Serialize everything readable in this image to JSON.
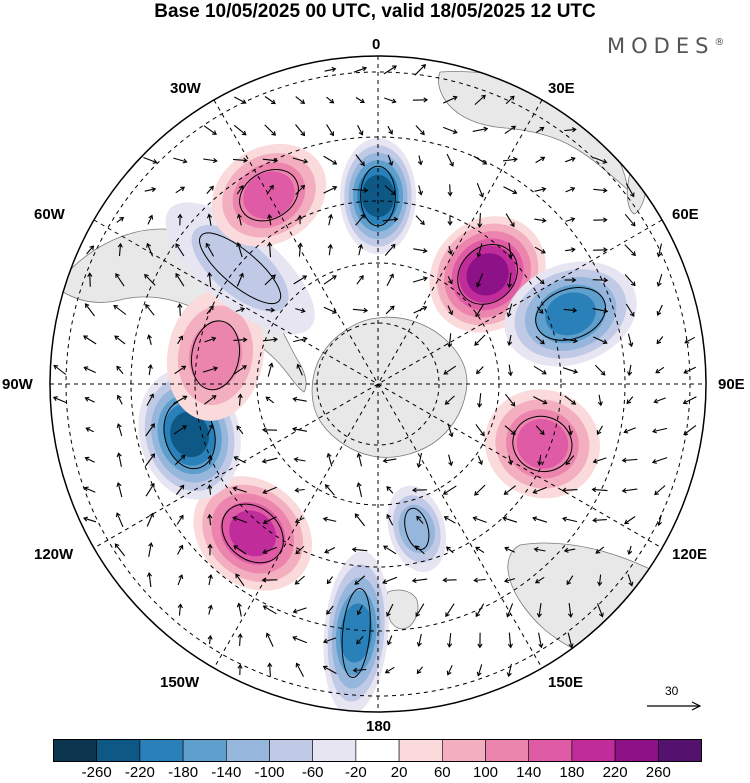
{
  "title": "Base 10/05/2025 00 UTC, valid 18/05/2025 12 UTC",
  "brand": {
    "name": "MODES",
    "mark": "®"
  },
  "map": {
    "projection": "south-polar-stereographic",
    "longitude_labels": [
      "0",
      "30E",
      "60E",
      "90E",
      "120E",
      "150E",
      "180",
      "150W",
      "120W",
      "90W",
      "60W",
      "30W"
    ],
    "reference_vector": {
      "value": "30"
    },
    "field_features": [
      {
        "kind": "negative",
        "level": -240,
        "sector": "0"
      },
      {
        "kind": "positive",
        "level": 240,
        "sector": "45E"
      },
      {
        "kind": "negative",
        "level": -200,
        "sector": "70E"
      },
      {
        "kind": "positive",
        "level": 140,
        "sector": "110E"
      },
      {
        "kind": "negative",
        "level": -100,
        "sector": "165E"
      },
      {
        "kind": "negative",
        "level": -180,
        "sector": "175W"
      },
      {
        "kind": "positive",
        "level": 180,
        "sector": "140W"
      },
      {
        "kind": "negative",
        "level": -220,
        "sector": "105W"
      },
      {
        "kind": "positive",
        "level": 120,
        "sector": "80W"
      },
      {
        "kind": "negative",
        "level": -80,
        "sector": "50W"
      },
      {
        "kind": "positive",
        "level": 140,
        "sector": "30W"
      }
    ]
  },
  "colorbar": {
    "ticks": [
      "-260",
      "-220",
      "-180",
      "-140",
      "-100",
      "-60",
      "-20",
      "20",
      "60",
      "100",
      "140",
      "180",
      "220",
      "260"
    ],
    "colors": [
      "#0c3550",
      "#0e5886",
      "#2a80b9",
      "#5f9fcd",
      "#96b6dc",
      "#c0c9e5",
      "#e7e5f2",
      "#ffffff",
      "#fadadb",
      "#f3aebf",
      "#ec85ad",
      "#e05ba6",
      "#c02c99",
      "#8d1187",
      "#55116e"
    ]
  }
}
